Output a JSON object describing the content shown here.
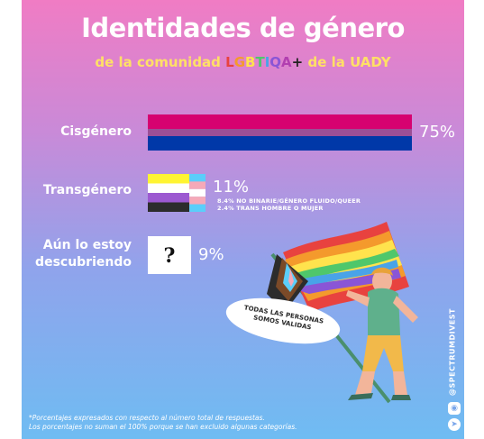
{
  "title": "Identidades de género",
  "subtitle": {
    "before": "de la comunidad ",
    "acronym": [
      {
        "ch": "L",
        "color": "#e8423f"
      },
      {
        "ch": "G",
        "color": "#f49a2c"
      },
      {
        "ch": "B",
        "color": "#ffe34d"
      },
      {
        "ch": "T",
        "color": "#4fc76b"
      },
      {
        "ch": "I",
        "color": "#49a3e8"
      },
      {
        "ch": "Q",
        "color": "#8a55d6"
      },
      {
        "ch": "A",
        "color": "#b23fb0"
      },
      {
        "ch": "+",
        "color": "#222222"
      }
    ],
    "after": " de la UADY"
  },
  "chart_data": {
    "type": "bar",
    "categories": [
      "Cisgénero",
      "Transgénero",
      "Aún lo estoy descubriendo"
    ],
    "values": [
      75,
      11,
      9
    ],
    "value_labels": [
      "75%",
      "11%",
      "9%"
    ],
    "unit": "%",
    "xlim": [
      0,
      75
    ],
    "annotations": [
      "8.4% NO BINARIE/GÉNERO FLUIDO/QUEER",
      "2.4% TRANS HOMBRE O MUJER"
    ],
    "colors": {
      "cis_flag": [
        "#d60270",
        "#9b4f96",
        "#0038a8"
      ],
      "nonbinary_flag": [
        "#fff433",
        "#ffffff",
        "#9c59d1",
        "#2c2c2c"
      ],
      "trans_flag": [
        "#5bcefa",
        "#f5a9b8",
        "#ffffff",
        "#f5a9b8",
        "#5bcefa"
      ]
    }
  },
  "row_labels": {
    "cis": "Cisgénero",
    "trans": "Transgénero",
    "disc_line1": "Aún lo estoy",
    "disc_line2": "descubriendo"
  },
  "question_mark": "?",
  "bubble_text_line1": "TODAS LAS PERSONAS",
  "bubble_text_line2": "SOMOS VALIDAS",
  "handle": "@SPECTRUMDIVEST",
  "icons": [
    "instagram-icon",
    "twitter-icon"
  ],
  "footnote_line1": "*Porcentajes expresados con respecto al número total de respuestas.",
  "footnote_line2": "Los porcentajes no suman el 100% porque se han excluido algunas categorías."
}
